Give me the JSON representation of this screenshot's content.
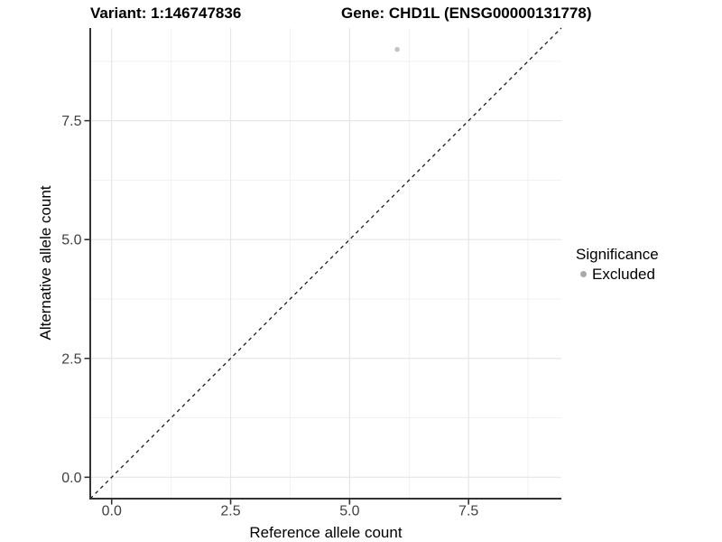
{
  "figure": {
    "background": "#ffffff"
  },
  "chart_data": {
    "type": "scatter",
    "title_variant": "Variant: 1:146747836",
    "title_gene": "Gene: CHD1L (ENSG00000131778)",
    "xlabel": "Reference allele count",
    "ylabel": "Alternative allele count",
    "xlim": [
      -0.45,
      9.45
    ],
    "ylim": [
      -0.45,
      9.45
    ],
    "major_ticks": [
      0,
      2.5,
      5,
      7.5
    ],
    "tick_labels": [
      "0.0",
      "2.5",
      "5.0",
      "7.5"
    ],
    "minor_gridlines": [
      1.25,
      3.75,
      6.25,
      8.75
    ],
    "grid": "major+minor",
    "points": [
      {
        "x": 6,
        "y": 9,
        "series": "Excluded"
      }
    ],
    "series": [
      {
        "name": "Excluded",
        "color": "#c4c4c4",
        "point_radius": 2.8
      }
    ],
    "reference_line": {
      "slope": 1,
      "intercept": 0,
      "style": "dashed",
      "color": "#1a1a1a"
    },
    "legend": {
      "title": "Significance",
      "position": "right",
      "items": [
        {
          "label": "Excluded",
          "color": "#a9a9a9"
        }
      ]
    }
  },
  "colors": {
    "grid_major": "#e6e6e6",
    "grid_minor": "#f1f1f1",
    "axis_line": "#333333",
    "tick_mark": "#333333",
    "tick_label": "#404040",
    "title_text": "#000000"
  }
}
